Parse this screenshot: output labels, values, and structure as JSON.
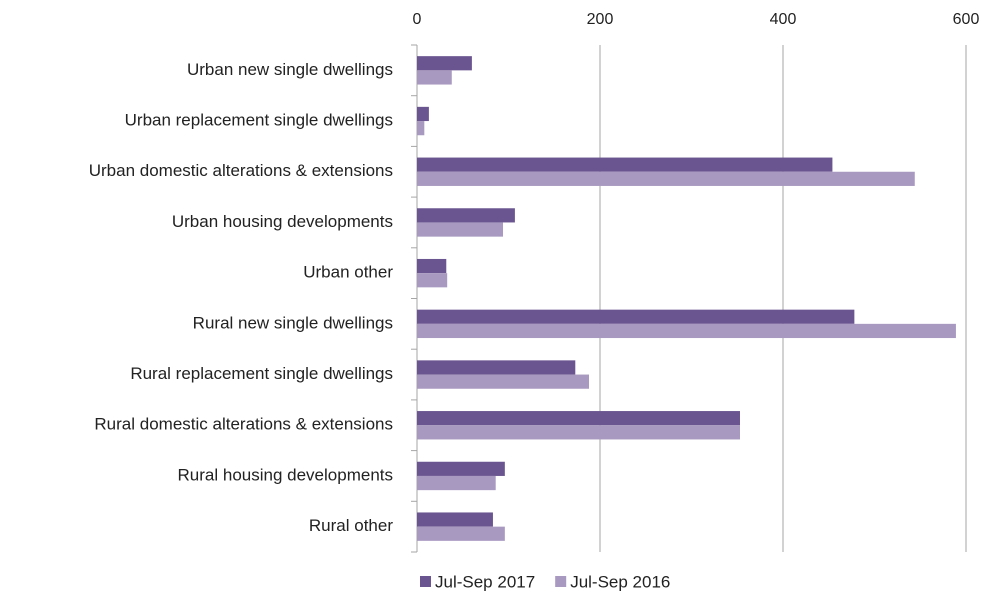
{
  "chart_data": {
    "type": "bar",
    "orientation": "horizontal",
    "categories": [
      "Urban new single dwellings",
      "Urban replacement single dwellings",
      "Urban domestic alterations & extensions",
      "Urban housing developments",
      "Urban other",
      "Rural new single dwellings",
      "Rural replacement single dwellings",
      "Rural domestic alterations & extensions",
      "Rural housing developments",
      "Rural other"
    ],
    "series": [
      {
        "name": "Jul-Sep 2017",
        "color": "#6b5590",
        "values": [
          60,
          13,
          454,
          107,
          32,
          478,
          173,
          353,
          96,
          83
        ]
      },
      {
        "name": "Jul-Sep 2016",
        "color": "#a899c0",
        "values": [
          38,
          8,
          544,
          94,
          33,
          589,
          188,
          353,
          86,
          96
        ]
      }
    ],
    "xlim": [
      0,
      600
    ],
    "xticks": [
      0,
      200,
      400,
      600
    ],
    "grid": true,
    "legend": "bottom"
  }
}
